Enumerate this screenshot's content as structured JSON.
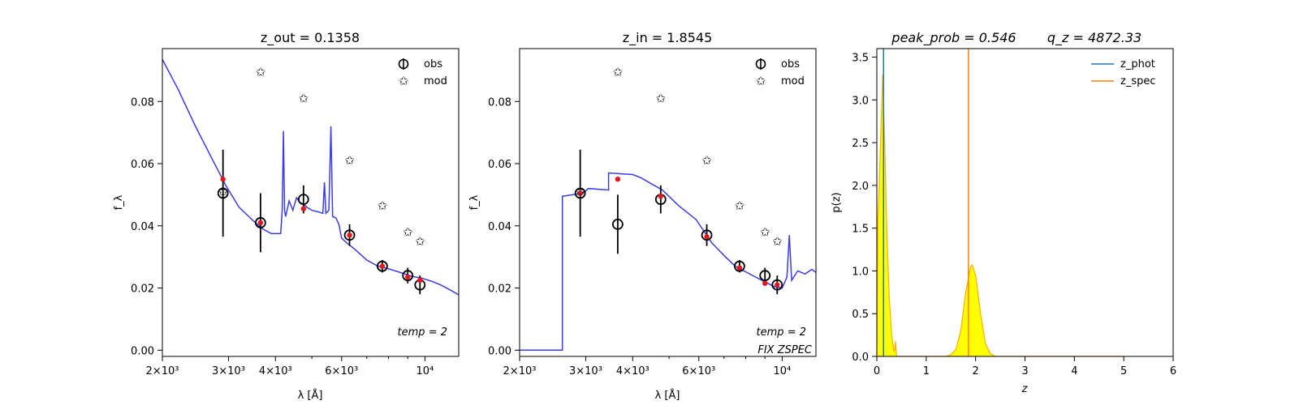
{
  "chart_data": [
    {
      "type": "line",
      "panel": "sed-out",
      "title": "z_out = 0.1358",
      "xlabel": "λ [Å]",
      "ylabel": "f_λ",
      "xscale": "log",
      "xlim": [
        2000,
        12300
      ],
      "ylim": [
        -0.002,
        0.097
      ],
      "xticks": [
        {
          "v": 2000,
          "label": "2×10³"
        },
        {
          "v": 3000,
          "label": "3×10³"
        },
        {
          "v": 4000,
          "label": "4×10³"
        },
        {
          "v": 6000,
          "label": "6×10³"
        },
        {
          "v": 10000,
          "label": "10⁴"
        }
      ],
      "yticks": [
        0.0,
        0.02,
        0.04,
        0.06,
        0.08
      ],
      "model_line": {
        "color": "#3a3af0",
        "points": [
          [
            2000,
            0.0935
          ],
          [
            2200,
            0.084
          ],
          [
            2450,
            0.072
          ],
          [
            2700,
            0.062
          ],
          [
            2950,
            0.053
          ],
          [
            3200,
            0.046
          ],
          [
            3500,
            0.0415
          ],
          [
            3700,
            0.039
          ],
          [
            3900,
            0.0375
          ],
          [
            4000,
            0.0375
          ],
          [
            4130,
            0.0375
          ],
          [
            4170,
            0.045
          ],
          [
            4200,
            0.0705
          ],
          [
            4230,
            0.045
          ],
          [
            4260,
            0.043
          ],
          [
            4350,
            0.048
          ],
          [
            4450,
            0.045
          ],
          [
            4550,
            0.049
          ],
          [
            4650,
            0.0475
          ],
          [
            4750,
            0.047
          ],
          [
            4850,
            0.046
          ],
          [
            5000,
            0.045
          ],
          [
            5200,
            0.0445
          ],
          [
            5350,
            0.044
          ],
          [
            5400,
            0.054
          ],
          [
            5450,
            0.044
          ],
          [
            5550,
            0.045
          ],
          [
            5620,
            0.072
          ],
          [
            5680,
            0.043
          ],
          [
            5800,
            0.0425
          ],
          [
            5900,
            0.0405
          ],
          [
            6000,
            0.036
          ],
          [
            6200,
            0.0345
          ],
          [
            6500,
            0.0325
          ],
          [
            7000,
            0.029
          ],
          [
            7500,
            0.027
          ],
          [
            8000,
            0.0262
          ],
          [
            8600,
            0.025
          ],
          [
            9200,
            0.0238
          ],
          [
            9800,
            0.0232
          ],
          [
            10400,
            0.0222
          ],
          [
            11000,
            0.021
          ],
          [
            11500,
            0.0198
          ],
          [
            12300,
            0.0178
          ]
        ]
      },
      "series": [
        {
          "name": "obs",
          "points": [
            {
              "x": 2900,
              "y": 0.0505,
              "err": 0.014
            },
            {
              "x": 3650,
              "y": 0.041,
              "err": 0.0095
            },
            {
              "x": 4750,
              "y": 0.0485,
              "err": 0.0045
            },
            {
              "x": 6300,
              "y": 0.037,
              "err": 0.0035
            },
            {
              "x": 7700,
              "y": 0.027,
              "err": 0.002
            },
            {
              "x": 9000,
              "y": 0.024,
              "err": 0.0025
            },
            {
              "x": 9700,
              "y": 0.021,
              "err": 0.003
            }
          ]
        },
        {
          "name": "mod",
          "points": [
            {
              "x": 2900,
              "y": 0.051
            },
            {
              "x": 3650,
              "y": 0.0895
            },
            {
              "x": 4750,
              "y": 0.081
            },
            {
              "x": 6300,
              "y": 0.061
            },
            {
              "x": 7700,
              "y": 0.0465
            },
            {
              "x": 9000,
              "y": 0.038
            },
            {
              "x": 9700,
              "y": 0.035
            }
          ]
        },
        {
          "name": "model-band",
          "points": [
            {
              "x": 2900,
              "y": 0.055
            },
            {
              "x": 3650,
              "y": 0.041
            },
            {
              "x": 4750,
              "y": 0.0455
            },
            {
              "x": 6300,
              "y": 0.037
            },
            {
              "x": 7700,
              "y": 0.027
            },
            {
              "x": 9000,
              "y": 0.0235
            },
            {
              "x": 9700,
              "y": 0.0225
            }
          ]
        }
      ],
      "legend": [
        "obs",
        "mod"
      ],
      "annotations": [
        "temp = 2"
      ]
    },
    {
      "type": "line",
      "panel": "sed-in",
      "title": "z_in = 1.8545",
      "xlabel": "λ [Å]",
      "ylabel": "f_λ",
      "xscale": "log",
      "xlim": [
        2000,
        12300
      ],
      "ylim": [
        -0.002,
        0.097
      ],
      "xticks": [
        {
          "v": 2000,
          "label": "2×10³"
        },
        {
          "v": 3000,
          "label": "3×10³"
        },
        {
          "v": 4000,
          "label": "4×10³"
        },
        {
          "v": 6000,
          "label": "6×10³"
        },
        {
          "v": 10000,
          "label": "10⁴"
        }
      ],
      "yticks": [
        0.0,
        0.02,
        0.04,
        0.06,
        0.08
      ],
      "model_line": {
        "color": "#3a3af0",
        "points": [
          [
            2000,
            0.0
          ],
          [
            2600,
            0.0
          ],
          [
            2600,
            0.0495
          ],
          [
            2950,
            0.0505
          ],
          [
            3050,
            0.052
          ],
          [
            3450,
            0.0515
          ],
          [
            3450,
            0.057
          ],
          [
            4000,
            0.0565
          ],
          [
            4200,
            0.0555
          ],
          [
            4800,
            0.0515
          ],
          [
            5300,
            0.0465
          ],
          [
            5900,
            0.042
          ],
          [
            6500,
            0.0345
          ],
          [
            7000,
            0.0305
          ],
          [
            7500,
            0.027
          ],
          [
            8000,
            0.0252
          ],
          [
            8500,
            0.0235
          ],
          [
            9000,
            0.022
          ],
          [
            9500,
            0.0205
          ],
          [
            10000,
            0.02
          ],
          [
            10300,
            0.0235
          ],
          [
            10450,
            0.037
          ],
          [
            10600,
            0.0225
          ],
          [
            11000,
            0.0255
          ],
          [
            11500,
            0.0245
          ],
          [
            12000,
            0.026
          ],
          [
            12300,
            0.025
          ]
        ]
      },
      "series": [
        {
          "name": "obs",
          "points": [
            {
              "x": 2900,
              "y": 0.0505,
              "err": 0.014
            },
            {
              "x": 3650,
              "y": 0.0405,
              "err": 0.0095
            },
            {
              "x": 4750,
              "y": 0.0485,
              "err": 0.0045
            },
            {
              "x": 6300,
              "y": 0.037,
              "err": 0.0035
            },
            {
              "x": 7700,
              "y": 0.027,
              "err": 0.002
            },
            {
              "x": 9000,
              "y": 0.024,
              "err": 0.0025
            },
            {
              "x": 9700,
              "y": 0.021,
              "err": 0.003
            }
          ]
        },
        {
          "name": "mod",
          "points": [
            {
              "x": 2900,
              "y": 0.051
            },
            {
              "x": 3650,
              "y": 0.0895
            },
            {
              "x": 4750,
              "y": 0.081
            },
            {
              "x": 6300,
              "y": 0.061
            },
            {
              "x": 7700,
              "y": 0.0465
            },
            {
              "x": 9000,
              "y": 0.038
            },
            {
              "x": 9700,
              "y": 0.035
            }
          ]
        },
        {
          "name": "model-band",
          "points": [
            {
              "x": 2900,
              "y": 0.0505
            },
            {
              "x": 3650,
              "y": 0.055
            },
            {
              "x": 4750,
              "y": 0.0495
            },
            {
              "x": 6300,
              "y": 0.0365
            },
            {
              "x": 7700,
              "y": 0.0265
            },
            {
              "x": 9000,
              "y": 0.0215
            },
            {
              "x": 9700,
              "y": 0.021
            }
          ]
        }
      ],
      "legend": [
        "obs",
        "mod"
      ],
      "annotations": [
        "temp = 2",
        "FIX ZSPEC"
      ]
    },
    {
      "type": "area",
      "panel": "pz",
      "title_left": "peak_prob = 0.546",
      "title_right": "q_z = 4872.33",
      "xlabel": "z",
      "ylabel": "p(z)",
      "xlim": [
        0,
        6
      ],
      "ylim": [
        0,
        3.6
      ],
      "xticks": [
        0,
        1,
        2,
        3,
        4,
        5,
        6
      ],
      "yticks": [
        0.0,
        0.5,
        1.0,
        1.5,
        2.0,
        2.5,
        3.0,
        3.5
      ],
      "pz_curve": [
        [
          0,
          0
        ],
        [
          0.02,
          1.6
        ],
        [
          0.05,
          2.0
        ],
        [
          0.08,
          2.6
        ],
        [
          0.12,
          3.3
        ],
        [
          0.16,
          2.5
        ],
        [
          0.2,
          1.5
        ],
        [
          0.25,
          0.7
        ],
        [
          0.3,
          0.25
        ],
        [
          0.35,
          0.05
        ],
        [
          0.37,
          0.1
        ],
        [
          0.38,
          0.18
        ],
        [
          0.4,
          0.0
        ],
        [
          1.4,
          0.0
        ],
        [
          1.5,
          0.02
        ],
        [
          1.6,
          0.08
        ],
        [
          1.7,
          0.3
        ],
        [
          1.8,
          0.75
        ],
        [
          1.9,
          1.05
        ],
        [
          1.93,
          1.07
        ],
        [
          2.0,
          0.95
        ],
        [
          2.1,
          0.5
        ],
        [
          2.2,
          0.15
        ],
        [
          2.3,
          0.03
        ],
        [
          2.4,
          0.0
        ],
        [
          5,
          0.0
        ]
      ],
      "vlines": [
        {
          "name": "z_phot",
          "x": 0.1358,
          "color": "#1f77b4"
        },
        {
          "name": "z_spec",
          "x": 1.8545,
          "color": "#ff7f0e"
        }
      ],
      "fill_color": "#ffff00",
      "curve_color": "#ffb000",
      "legend": [
        "z_phot",
        "z_spec"
      ]
    }
  ]
}
